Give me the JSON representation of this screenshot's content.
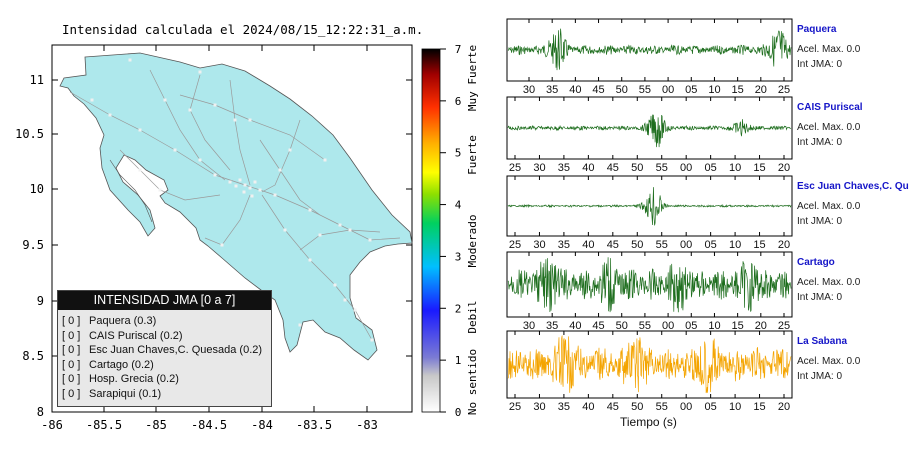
{
  "map": {
    "title": "Intensidad calculada el 2024/08/15_12:22:31_a.m.",
    "x_ticks": [
      "-86",
      "-85.5",
      "-85",
      "-84.5",
      "-84",
      "-83.5",
      "-83"
    ],
    "y_ticks": [
      "11",
      "10.5",
      "10",
      "9.5",
      "9",
      "8.5",
      "8"
    ],
    "land_color": "#aee8ec",
    "road_color": "#999999"
  },
  "scale": {
    "ticks": [
      "0",
      "1",
      "2",
      "3",
      "4",
      "5",
      "6",
      "7"
    ],
    "category_labels": [
      "No sentido",
      "Debil",
      "Moderado",
      "Fuerte",
      "Muy Fuerte"
    ]
  },
  "legend": {
    "title": "INTENSIDAD JMA [0 a 7]",
    "items": [
      {
        "level": "[ 0 ]",
        "label": "Paquera (0.3)"
      },
      {
        "level": "[ 0 ]",
        "label": "CAIS Puriscal (0.2)"
      },
      {
        "level": "[ 0 ]",
        "label": "Esc Juan Chaves,C. Quesada (0.2)"
      },
      {
        "level": "[ 0 ]",
        "label": "Cartago (0.2)"
      },
      {
        "level": "[ 0 ]",
        "label": "Hosp. Grecia (0.2)"
      },
      {
        "level": "[ 0 ]",
        "label": "Sarapiqui (0.1)"
      }
    ]
  },
  "stations": [
    {
      "name": "Paquera",
      "acel": "Acel. Max. 0.0",
      "jma": "Int JMA: 0",
      "color": "#1e6e1e",
      "ticks": [
        "30",
        "35",
        "40",
        "45",
        "50",
        "55",
        "00",
        "05",
        "10",
        "15",
        "20",
        "25"
      ]
    },
    {
      "name": "CAIS Puriscal",
      "acel": "Acel. Max. 0.0",
      "jma": "Int JMA: 0",
      "color": "#1e6e1e",
      "ticks": [
        "25",
        "30",
        "35",
        "40",
        "45",
        "50",
        "55",
        "00",
        "05",
        "10",
        "15",
        "20"
      ]
    },
    {
      "name": "Esc Juan Chaves,C. Qu",
      "acel": "Acel. Max. 0.0",
      "jma": "Int JMA: 0",
      "color": "#1e6e1e",
      "ticks": [
        "25",
        "30",
        "35",
        "40",
        "45",
        "50",
        "55",
        "00",
        "05",
        "10",
        "15",
        "20"
      ]
    },
    {
      "name": "Cartago",
      "acel": "Acel. Max. 0.0",
      "jma": "Int JMA: 0",
      "color": "#1e6e1e",
      "ticks": [
        "30",
        "35",
        "40",
        "45",
        "50",
        "55",
        "00",
        "05",
        "10",
        "15",
        "20",
        "25"
      ]
    },
    {
      "name": "La Sabana",
      "acel": "Acel. Max. 0.0",
      "jma": "Int JMA: 0",
      "color": "#f4a400",
      "ticks": [
        "25",
        "30",
        "35",
        "40",
        "45",
        "50",
        "55",
        "00",
        "05",
        "10",
        "15",
        "20"
      ]
    }
  ],
  "time_axis_label": "Tiempo (s)"
}
